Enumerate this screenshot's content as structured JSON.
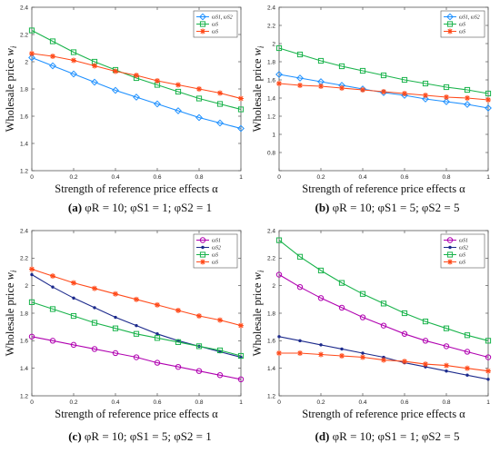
{
  "colors": {
    "blue": "#1e90ff",
    "green": "#19b34b",
    "red": "#ff4a1a",
    "magenta": "#b000b0",
    "navy": "#1c2a8c",
    "axis": "#555555"
  },
  "shared": {
    "x_label": "Strength of reference price effects α",
    "y_label_text": "Wholesale price ",
    "y_label_var": "w",
    "y_label_sub": "i"
  },
  "chart_data": [
    {
      "type": "line",
      "caption": {
        "letter": "(a)",
        "text": "φR = 10;  φS1 = 1;  φS2 = 1"
      },
      "x": [
        0,
        0.1,
        0.2,
        0.3,
        0.4,
        0.5,
        0.6,
        0.7,
        0.8,
        0.9,
        1
      ],
      "xlim": [
        0,
        1
      ],
      "ylim": [
        1.2,
        2.4
      ],
      "x_ticks": [
        0,
        0.2,
        0.4,
        0.6,
        0.8,
        1
      ],
      "x_tick_labels": [
        "0",
        "0.2",
        "0.4",
        "0.6",
        "0.8",
        "1"
      ],
      "y_ticks": [
        1.2,
        1.4,
        1.6,
        1.8,
        2,
        2.2,
        2.4
      ],
      "y_tick_labels": [
        "1.2",
        "1.4",
        "1.6",
        "1.8",
        "2",
        "2.2",
        "2.4"
      ],
      "legend_position": "top-right",
      "series": [
        {
          "name": "ωS1, ωS2",
          "color": "blue",
          "marker": "diamond",
          "values": [
            2.03,
            1.97,
            1.91,
            1.85,
            1.79,
            1.74,
            1.69,
            1.64,
            1.59,
            1.55,
            1.51
          ]
        },
        {
          "name": "ωS",
          "color": "green",
          "marker": "square",
          "values": [
            2.23,
            2.15,
            2.07,
            2.0,
            1.94,
            1.88,
            1.83,
            1.78,
            1.73,
            1.69,
            1.65
          ]
        },
        {
          "name": "ωS",
          "color": "red",
          "marker": "star",
          "values": [
            2.06,
            2.04,
            2.01,
            1.97,
            1.93,
            1.9,
            1.86,
            1.83,
            1.8,
            1.77,
            1.73
          ]
        }
      ]
    },
    {
      "type": "line",
      "caption": {
        "letter": "(b)",
        "text": "φR = 10;  φS1 = 5;  φS2 = 5"
      },
      "x": [
        0,
        0.1,
        0.2,
        0.3,
        0.4,
        0.5,
        0.6,
        0.7,
        0.8,
        0.9,
        1
      ],
      "xlim": [
        0,
        1
      ],
      "ylim": [
        0.6,
        2.4
      ],
      "x_ticks": [
        0,
        0.2,
        0.4,
        0.6,
        0.8,
        1
      ],
      "x_tick_labels": [
        "0",
        "0.2",
        "0.4",
        "0.6",
        "0.8",
        "1"
      ],
      "y_ticks": [
        0.6,
        0.8,
        1,
        1.2,
        1.4,
        1.6,
        1.8,
        2,
        2.2,
        2.4
      ],
      "y_tick_labels": [
        "",
        "0.8",
        "1",
        "1.2",
        "1.4",
        "1.6",
        "1.8",
        "2",
        "2.2",
        "2.4"
      ],
      "legend_position": "top-right",
      "series": [
        {
          "name": "ωS1, ωS2",
          "color": "blue",
          "marker": "diamond",
          "values": [
            1.66,
            1.62,
            1.58,
            1.54,
            1.5,
            1.46,
            1.43,
            1.39,
            1.36,
            1.33,
            1.29
          ]
        },
        {
          "name": "ωS",
          "color": "green",
          "marker": "square",
          "values": [
            1.95,
            1.88,
            1.81,
            1.75,
            1.7,
            1.65,
            1.6,
            1.56,
            1.52,
            1.49,
            1.45
          ]
        },
        {
          "name": "ωS",
          "color": "red",
          "marker": "star",
          "values": [
            1.56,
            1.54,
            1.53,
            1.51,
            1.49,
            1.47,
            1.45,
            1.43,
            1.41,
            1.4,
            1.38
          ]
        }
      ]
    },
    {
      "type": "line",
      "caption": {
        "letter": "(c)",
        "text": "φR = 10;  φS1 = 5;  φS2 = 1"
      },
      "x": [
        0,
        0.1,
        0.2,
        0.3,
        0.4,
        0.5,
        0.6,
        0.7,
        0.8,
        0.9,
        1
      ],
      "xlim": [
        0,
        1
      ],
      "ylim": [
        1.2,
        2.4
      ],
      "x_ticks": [
        0,
        0.2,
        0.4,
        0.6,
        0.8,
        1
      ],
      "x_tick_labels": [
        "0",
        "0.2",
        "0.4",
        "0.6",
        "0.8",
        "1"
      ],
      "y_ticks": [
        1.2,
        1.4,
        1.6,
        1.8,
        2,
        2.2,
        2.4
      ],
      "y_tick_labels": [
        "1.2",
        "1.4",
        "1.6",
        "1.8",
        "2",
        "2.2",
        "2.4"
      ],
      "legend_position": "top-right",
      "series": [
        {
          "name": "ωS1",
          "color": "magenta",
          "marker": "circle",
          "values": [
            1.63,
            1.6,
            1.57,
            1.54,
            1.51,
            1.48,
            1.44,
            1.41,
            1.38,
            1.35,
            1.32
          ]
        },
        {
          "name": "ωS2",
          "color": "navy",
          "marker": "dot",
          "values": [
            2.08,
            1.99,
            1.91,
            1.84,
            1.77,
            1.71,
            1.65,
            1.6,
            1.56,
            1.52,
            1.48
          ]
        },
        {
          "name": "ωS",
          "color": "green",
          "marker": "square",
          "values": [
            1.88,
            1.83,
            1.78,
            1.73,
            1.69,
            1.65,
            1.62,
            1.59,
            1.56,
            1.53,
            1.49
          ]
        },
        {
          "name": "ωS",
          "color": "red",
          "marker": "star",
          "values": [
            2.12,
            2.07,
            2.02,
            1.98,
            1.94,
            1.9,
            1.86,
            1.82,
            1.78,
            1.75,
            1.71
          ]
        }
      ]
    },
    {
      "type": "line",
      "caption": {
        "letter": "(d)",
        "text": "φR = 10;  φS1 = 1;  φS2 = 5"
      },
      "x": [
        0,
        0.1,
        0.2,
        0.3,
        0.4,
        0.5,
        0.6,
        0.7,
        0.8,
        0.9,
        1
      ],
      "xlim": [
        0,
        1
      ],
      "ylim": [
        1.2,
        2.4
      ],
      "x_ticks": [
        0,
        0.2,
        0.4,
        0.6,
        0.8,
        1
      ],
      "x_tick_labels": [
        "0",
        "0.2",
        "0.4",
        "0.6",
        "0.8",
        "1"
      ],
      "y_ticks": [
        1.2,
        1.4,
        1.6,
        1.8,
        2,
        2.2,
        2.4
      ],
      "y_tick_labels": [
        "1.2",
        "1.4",
        "1.6",
        "1.8",
        "2",
        "2.2",
        "2.4"
      ],
      "legend_position": "top-right",
      "series": [
        {
          "name": "ωS1",
          "color": "magenta",
          "marker": "circle",
          "values": [
            2.08,
            1.99,
            1.91,
            1.84,
            1.77,
            1.71,
            1.65,
            1.6,
            1.56,
            1.52,
            1.48
          ]
        },
        {
          "name": "ωS2",
          "color": "navy",
          "marker": "dot",
          "values": [
            1.63,
            1.6,
            1.57,
            1.54,
            1.51,
            1.48,
            1.44,
            1.41,
            1.38,
            1.35,
            1.32
          ]
        },
        {
          "name": "ωS",
          "color": "green",
          "marker": "square",
          "values": [
            2.33,
            2.21,
            2.11,
            2.02,
            1.94,
            1.87,
            1.8,
            1.74,
            1.69,
            1.64,
            1.6
          ]
        },
        {
          "name": "ωS",
          "color": "red",
          "marker": "star",
          "values": [
            1.51,
            1.51,
            1.5,
            1.49,
            1.48,
            1.46,
            1.45,
            1.43,
            1.42,
            1.4,
            1.38
          ]
        }
      ]
    }
  ]
}
